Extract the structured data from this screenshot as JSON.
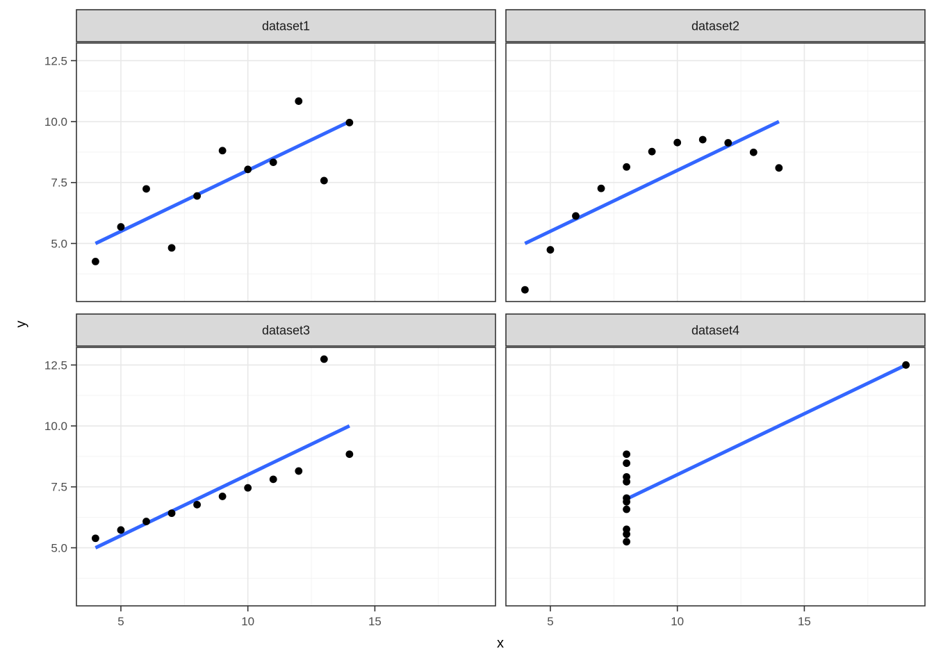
{
  "chart_data": {
    "type": "scatter",
    "title": "",
    "xlabel": "x",
    "ylabel": "y",
    "xlim": [
      3.25,
      19.75
    ],
    "ylim": [
      2.618,
      13.222
    ],
    "x_ticks": {
      "values": [
        5,
        10,
        15
      ],
      "labels": [
        "5",
        "10",
        "15"
      ]
    },
    "y_ticks": {
      "values": [
        5.0,
        7.5,
        10.0,
        12.5
      ],
      "labels": [
        "5.0",
        "7.5",
        "10.0",
        "12.5"
      ]
    },
    "x_minor_gridlines": [
      7.5,
      12.5,
      17.5
    ],
    "y_minor_gridlines": [
      3.75,
      6.25,
      8.75,
      11.25
    ],
    "legend": "none",
    "grid": "on",
    "facets": [
      {
        "label": "dataset1",
        "points": [
          [
            10,
            8.04
          ],
          [
            8,
            6.95
          ],
          [
            13,
            7.58
          ],
          [
            9,
            8.81
          ],
          [
            11,
            8.33
          ],
          [
            14,
            9.96
          ],
          [
            6,
            7.24
          ],
          [
            4,
            4.26
          ],
          [
            12,
            10.84
          ],
          [
            7,
            4.82
          ],
          [
            5,
            5.68
          ]
        ],
        "regression_line": {
          "x": [
            4,
            14
          ],
          "y": [
            5.0,
            10.0
          ]
        }
      },
      {
        "label": "dataset2",
        "points": [
          [
            10,
            9.14
          ],
          [
            8,
            8.14
          ],
          [
            13,
            8.74
          ],
          [
            9,
            8.77
          ],
          [
            11,
            9.26
          ],
          [
            14,
            8.1
          ],
          [
            6,
            6.13
          ],
          [
            4,
            3.1
          ],
          [
            12,
            9.13
          ],
          [
            7,
            7.26
          ],
          [
            5,
            4.74
          ]
        ],
        "regression_line": {
          "x": [
            4,
            14
          ],
          "y": [
            5.0,
            10.0
          ]
        }
      },
      {
        "label": "dataset3",
        "points": [
          [
            10,
            7.46
          ],
          [
            8,
            6.77
          ],
          [
            13,
            12.74
          ],
          [
            9,
            7.11
          ],
          [
            11,
            7.81
          ],
          [
            14,
            8.84
          ],
          [
            6,
            6.08
          ],
          [
            4,
            5.39
          ],
          [
            12,
            8.15
          ],
          [
            7,
            6.42
          ],
          [
            5,
            5.73
          ]
        ],
        "regression_line": {
          "x": [
            4,
            14
          ],
          "y": [
            5.0,
            10.0
          ]
        }
      },
      {
        "label": "dataset4",
        "points": [
          [
            8,
            6.58
          ],
          [
            8,
            5.76
          ],
          [
            8,
            7.71
          ],
          [
            8,
            8.84
          ],
          [
            8,
            8.47
          ],
          [
            8,
            7.04
          ],
          [
            8,
            5.25
          ],
          [
            19,
            12.5
          ],
          [
            8,
            5.56
          ],
          [
            8,
            7.91
          ],
          [
            8,
            6.89
          ]
        ],
        "regression_line": {
          "x": [
            8,
            19
          ],
          "y": [
            7.0,
            12.5
          ]
        }
      }
    ],
    "style": {
      "point_color": "#000000",
      "line_color": "#3366FF",
      "strip_bg": "#D9D9D9",
      "strip_text_color": "#1A1A1A",
      "panel_bg": "#FFFFFF",
      "panel_border": "#333333",
      "grid_major": "#E8E8E8",
      "grid_minor": "#F3F3F3",
      "tick_text_color": "#4D4D4D",
      "tick_mark_color": "#333333"
    }
  }
}
